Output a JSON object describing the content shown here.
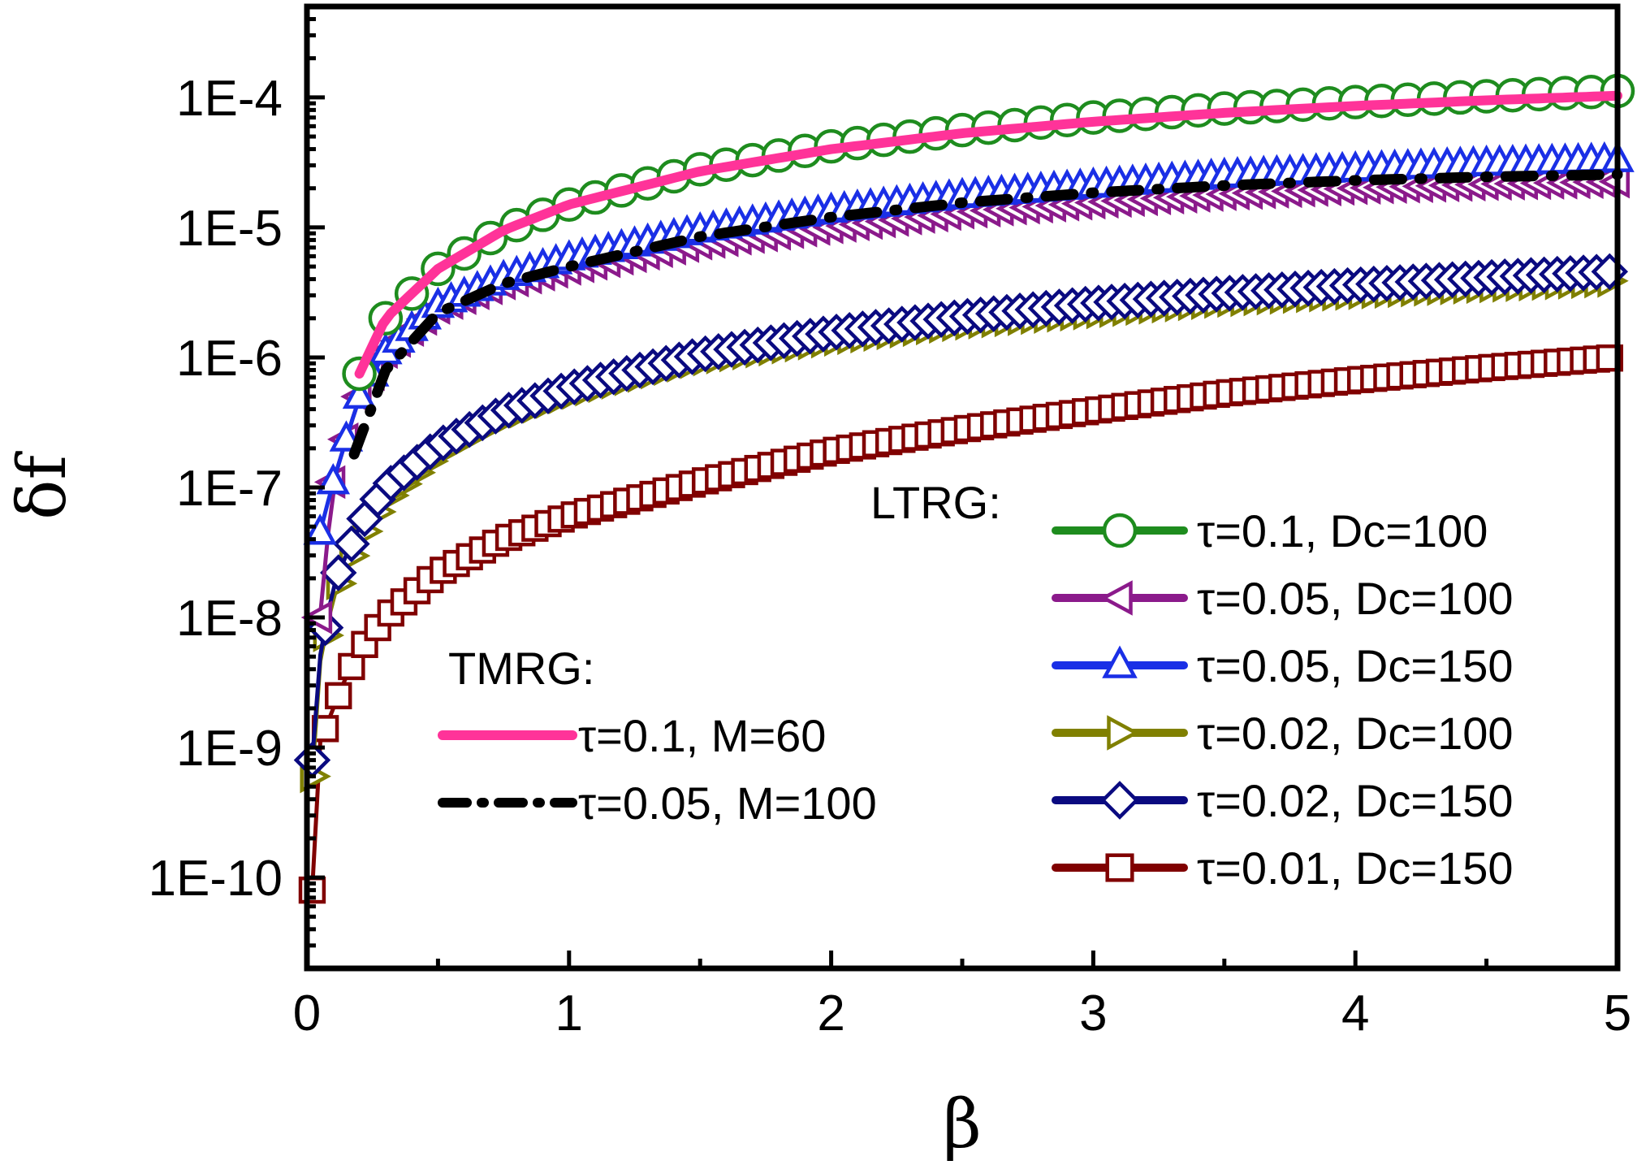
{
  "chart_data": {
    "type": "line",
    "xlabel": "β",
    "ylabel": "δf",
    "xlim": [
      0,
      5
    ],
    "ylim": [
      2e-11,
      0.0005
    ],
    "yscale": "log",
    "grid": false,
    "x_ticks": [
      "0",
      "1",
      "2",
      "3",
      "4",
      "5"
    ],
    "y_ticks": [
      "1E-10",
      "1E-9",
      "1E-8",
      "1E-7",
      "1E-6",
      "1E-5",
      "1E-4"
    ],
    "legend_groups": [
      {
        "heading": "LTRG:",
        "placement": "bottom-right"
      },
      {
        "heading": "TMRG:",
        "placement": "bottom-center"
      }
    ],
    "series": [
      {
        "name": "τ=0.1, Dc=100",
        "group": "LTRG",
        "color": "#1e8c1e",
        "marker": "circle",
        "x_start": 0.2,
        "x_end": 5.0,
        "points": [
          [
            0.2,
            7.5e-07
          ],
          [
            0.3,
            2e-06
          ],
          [
            0.5,
            4.8e-06
          ],
          [
            0.75,
            9.5e-06
          ],
          [
            1.0,
            1.5e-05
          ],
          [
            1.5,
            2.8e-05
          ],
          [
            2.0,
            4.2e-05
          ],
          [
            2.5,
            5.6e-05
          ],
          [
            3.0,
            7e-05
          ],
          [
            3.5,
            8.2e-05
          ],
          [
            4.0,
            9.2e-05
          ],
          [
            4.5,
            0.000102
          ],
          [
            5.0,
            0.000112
          ]
        ]
      },
      {
        "name": "τ=0.05, Dc=100",
        "group": "LTRG",
        "color": "#8b1a8b",
        "marker": "triangle-left",
        "x_start": 0.05,
        "x_end": 5.0,
        "points": [
          [
            0.05,
            1e-08
          ],
          [
            0.1,
            1.1e-07
          ],
          [
            0.2,
            5e-07
          ],
          [
            0.3,
            1.1e-06
          ],
          [
            0.5,
            2.4e-06
          ],
          [
            0.75,
            3.7e-06
          ],
          [
            1.0,
            4.8e-06
          ],
          [
            1.5,
            7.5e-06
          ],
          [
            2.0,
            1e-05
          ],
          [
            2.5,
            1.3e-05
          ],
          [
            3.0,
            1.55e-05
          ],
          [
            3.5,
            1.8e-05
          ],
          [
            4.0,
            2e-05
          ],
          [
            4.5,
            2.15e-05
          ],
          [
            5.0,
            2.25e-05
          ]
        ]
      },
      {
        "name": "τ=0.05, Dc=150",
        "group": "LTRG",
        "color": "#1a2fe6",
        "marker": "triangle-up",
        "x_start": 0.05,
        "x_end": 5.0,
        "points": [
          [
            0.05,
            4.5e-08
          ],
          [
            0.1,
            1.1e-07
          ],
          [
            0.2,
            5e-07
          ],
          [
            0.3,
            1.1e-06
          ],
          [
            0.5,
            2.5e-06
          ],
          [
            0.75,
            4.1e-06
          ],
          [
            1.0,
            5.8e-06
          ],
          [
            1.5,
            9.5e-06
          ],
          [
            2.0,
            1.35e-05
          ],
          [
            2.5,
            1.75e-05
          ],
          [
            3.0,
            2.1e-05
          ],
          [
            3.5,
            2.5e-05
          ],
          [
            4.0,
            2.8e-05
          ],
          [
            4.5,
            3.1e-05
          ],
          [
            5.0,
            3.3e-05
          ]
        ]
      },
      {
        "name": "τ=0.02, Dc=100",
        "group": "LTRG",
        "color": "#808000",
        "marker": "triangle-right",
        "x_start": 0.02,
        "x_end": 5.0,
        "points": [
          [
            0.02,
            6e-10
          ],
          [
            0.05,
            4.5e-09
          ],
          [
            0.1,
            1.5e-08
          ],
          [
            0.2,
            4e-08
          ],
          [
            0.3,
            8e-08
          ],
          [
            0.5,
            1.8e-07
          ],
          [
            0.75,
            3.4e-07
          ],
          [
            1.0,
            5.2e-07
          ],
          [
            1.5,
            9.5e-07
          ],
          [
            2.0,
            1.35e-06
          ],
          [
            2.5,
            1.8e-06
          ],
          [
            3.0,
            2.2e-06
          ],
          [
            3.5,
            2.7e-06
          ],
          [
            4.0,
            3.1e-06
          ],
          [
            4.5,
            3.5e-06
          ],
          [
            5.0,
            3.9e-06
          ]
        ]
      },
      {
        "name": "τ=0.02, Dc=150",
        "group": "LTRG",
        "color": "#0a0a80",
        "marker": "diamond",
        "x_start": 0.02,
        "x_end": 5.0,
        "points": [
          [
            0.02,
            8e-10
          ],
          [
            0.05,
            5e-09
          ],
          [
            0.1,
            1.8e-08
          ],
          [
            0.2,
            5e-08
          ],
          [
            0.3,
            1e-07
          ],
          [
            0.5,
            2.1e-07
          ],
          [
            0.75,
            3.8e-07
          ],
          [
            1.0,
            5.8e-07
          ],
          [
            1.5,
            1.05e-06
          ],
          [
            2.0,
            1.55e-06
          ],
          [
            2.5,
            2.05e-06
          ],
          [
            3.0,
            2.6e-06
          ],
          [
            3.5,
            3.1e-06
          ],
          [
            4.0,
            3.6e-06
          ],
          [
            4.5,
            4.1e-06
          ],
          [
            5.0,
            4.6e-06
          ]
        ]
      },
      {
        "name": "τ=0.01, Dc=150",
        "group": "LTRG",
        "color": "#800000",
        "marker": "square",
        "x_start": 0.02,
        "x_end": 5.0,
        "points": [
          [
            0.02,
            8e-11
          ],
          [
            0.03,
            5e-10
          ],
          [
            0.05,
            1.1e-09
          ],
          [
            0.1,
            2e-09
          ],
          [
            0.15,
            3.5e-09
          ],
          [
            0.2,
            5.5e-09
          ],
          [
            0.3,
            1e-08
          ],
          [
            0.5,
            2.2e-08
          ],
          [
            0.75,
            4e-08
          ],
          [
            1.0,
            6e-08
          ],
          [
            1.5,
            1.1e-07
          ],
          [
            2.0,
            1.9e-07
          ],
          [
            2.5,
            2.8e-07
          ],
          [
            3.0,
            3.9e-07
          ],
          [
            3.5,
            5.3e-07
          ],
          [
            4.0,
            6.7e-07
          ],
          [
            4.5,
            8.3e-07
          ],
          [
            5.0,
            1e-06
          ]
        ]
      },
      {
        "name": "τ=0.1, M=60",
        "group": "TMRG",
        "color": "#ff3399",
        "marker": "none",
        "line": "solid",
        "points": [
          [
            0.2,
            7.5e-07
          ],
          [
            0.3,
            2e-06
          ],
          [
            0.5,
            4.8e-06
          ],
          [
            0.75,
            9.5e-06
          ],
          [
            1.0,
            1.5e-05
          ],
          [
            1.5,
            2.7e-05
          ],
          [
            2.0,
            4e-05
          ],
          [
            2.5,
            5.3e-05
          ],
          [
            3.0,
            6.5e-05
          ],
          [
            3.5,
            7.6e-05
          ],
          [
            4.0,
            8.6e-05
          ],
          [
            4.5,
            9.5e-05
          ],
          [
            5.0,
            0.000103
          ]
        ]
      },
      {
        "name": "τ=0.05, M=100",
        "group": "TMRG",
        "color": "#000000",
        "marker": "none",
        "line": "dash-dot",
        "points": [
          [
            0.18,
            1.8e-07
          ],
          [
            0.3,
            8e-07
          ],
          [
            0.5,
            2.2e-06
          ],
          [
            0.75,
            3.7e-06
          ],
          [
            1.0,
            5e-06
          ],
          [
            1.5,
            8.5e-06
          ],
          [
            2.0,
            1.2e-05
          ],
          [
            2.5,
            1.55e-05
          ],
          [
            3.0,
            1.85e-05
          ],
          [
            3.5,
            2.1e-05
          ],
          [
            4.0,
            2.3e-05
          ],
          [
            4.5,
            2.45e-05
          ],
          [
            5.0,
            2.55e-05
          ]
        ]
      }
    ]
  }
}
